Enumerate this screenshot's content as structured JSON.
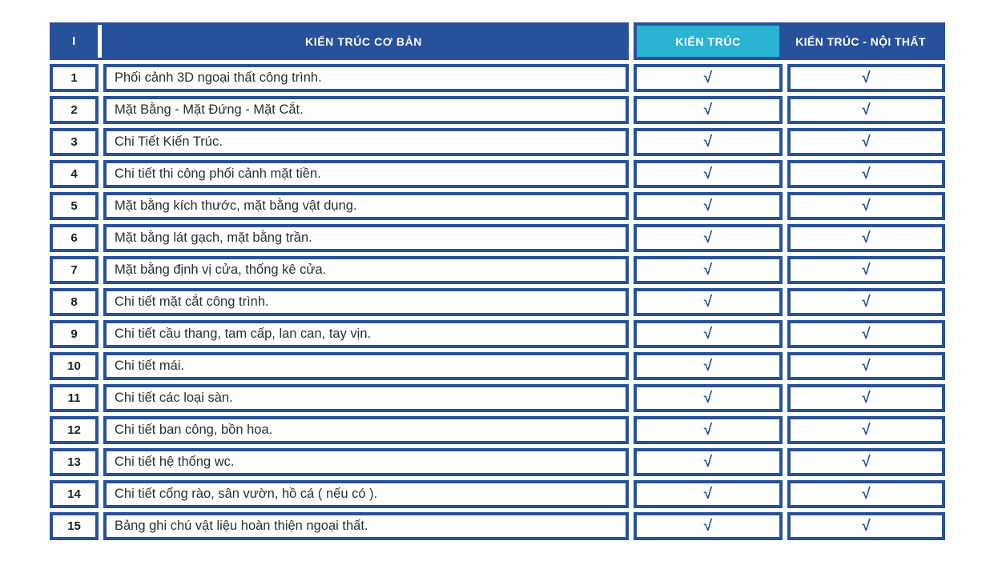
{
  "header": {
    "index_label": "I",
    "category_title": "KIẾN TRÚC CƠ BẢN",
    "package1_label": "KIẾN TRÚC",
    "package2_label": "KIẾN TRÚC - NỘI THẤT"
  },
  "symbols": {
    "check": "√"
  },
  "colors": {
    "primary_blue": "#27519B",
    "accent_cyan": "#2AB3D3",
    "body_text": "#2d2d2d",
    "header_text": "#FFFFFF"
  },
  "rows": [
    {
      "no": "1",
      "label": "Phối cảnh 3D ngoại thất công trình.",
      "kien_truc": true,
      "kien_truc_noi_that": true
    },
    {
      "no": "2",
      "label": "Mặt Bằng - Mặt Đứng - Mặt Cắt.",
      "kien_truc": true,
      "kien_truc_noi_that": true
    },
    {
      "no": "3",
      "label": "Chi Tiết Kiến Trúc.",
      "kien_truc": true,
      "kien_truc_noi_that": true
    },
    {
      "no": "4",
      "label": "Chi tiết thi công phối cảnh mặt tiền.",
      "kien_truc": true,
      "kien_truc_noi_that": true
    },
    {
      "no": "5",
      "label": "Mặt bằng kích thước, mặt bằng vật dụng.",
      "kien_truc": true,
      "kien_truc_noi_that": true
    },
    {
      "no": "6",
      "label": "Mặt bằng lát gạch, mặt bằng trần.",
      "kien_truc": true,
      "kien_truc_noi_that": true
    },
    {
      "no": "7",
      "label": "Mặt bằng định vị cửa, thống kê cửa.",
      "kien_truc": true,
      "kien_truc_noi_that": true
    },
    {
      "no": "8",
      "label": "Chi tiết mặt cắt công trình.",
      "kien_truc": true,
      "kien_truc_noi_that": true
    },
    {
      "no": "9",
      "label": "Chi tiết cầu thang, tam cấp, lan can, tay vịn.",
      "kien_truc": true,
      "kien_truc_noi_that": true
    },
    {
      "no": "10",
      "label": "Chi tiết mái.",
      "kien_truc": true,
      "kien_truc_noi_that": true
    },
    {
      "no": "11",
      "label": "Chi tiết các loại sàn.",
      "kien_truc": true,
      "kien_truc_noi_that": true
    },
    {
      "no": "12",
      "label": "Chi tiết ban công, bồn hoa.",
      "kien_truc": true,
      "kien_truc_noi_that": true
    },
    {
      "no": "13",
      "label": "Chi tiết hệ thống wc.",
      "kien_truc": true,
      "kien_truc_noi_that": true
    },
    {
      "no": "14",
      "label": "Chi tiết cổng rào, sân vườn, hồ cá ( nếu có ).",
      "kien_truc": true,
      "kien_truc_noi_that": true
    },
    {
      "no": "15",
      "label": "Bảng ghi chú vật liệu hoàn thiện ngoại thất.",
      "kien_truc": true,
      "kien_truc_noi_that": true
    }
  ]
}
